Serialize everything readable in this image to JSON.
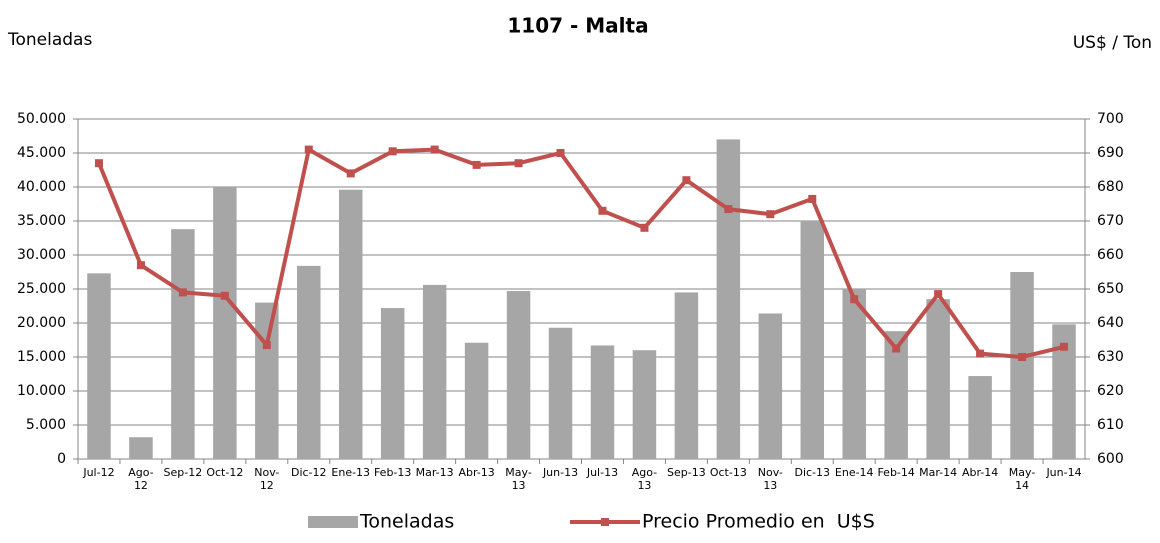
{
  "chart_data": {
    "type": "bar-line",
    "title": "1107 - Malta",
    "y_label": "Toneladas",
    "y2_label": "US$ / Ton",
    "categories": [
      "Jul-12",
      "Ago-12",
      "Sep-12",
      "Oct-12",
      "Nov-12",
      "Dic-12",
      "Ene-13",
      "Feb-13",
      "Mar-13",
      "Abr-13",
      "May-13",
      "Jun-13",
      "Jul-13",
      "Ago-13",
      "Sep-13",
      "Oct-13",
      "Nov-13",
      "Dic-13",
      "Ene-14",
      "Feb-14",
      "Mar-14",
      "Abr-14",
      "May-14",
      "Jun-14"
    ],
    "series": [
      {
        "name": "Toneladas",
        "type": "bar",
        "color": "#a6a6a6",
        "axis": "y",
        "values": [
          27300,
          3200,
          33800,
          40100,
          23000,
          28400,
          39600,
          22200,
          25600,
          17100,
          24700,
          19300,
          16700,
          16000,
          24500,
          47000,
          21400,
          34900,
          25000,
          18800,
          23500,
          12200,
          27500,
          19800
        ]
      },
      {
        "name": "Precio Promedio en  U$S",
        "type": "line",
        "color": "#c0504d",
        "axis": "y2",
        "values": [
          687,
          657,
          649,
          648,
          633.5,
          691,
          684,
          690.5,
          691,
          686.5,
          687,
          690,
          673,
          668,
          682,
          673.5,
          672,
          676.5,
          647,
          632.5,
          648.5,
          631,
          630,
          633
        ]
      }
    ],
    "ylim": [
      0,
      50000
    ],
    "yticks": [
      0,
      {
        "value": 5000,
        "label": "5.000"
      },
      {
        "value": 10000,
        "label": "10.000"
      },
      {
        "value": 15000,
        "label": "15.000"
      },
      {
        "value": 20000,
        "label": "20.000"
      },
      {
        "value": 25000,
        "label": "25.000"
      },
      {
        "value": 30000,
        "label": "30.000"
      },
      {
        "value": 35000,
        "label": "35.000"
      },
      {
        "value": 40000,
        "label": "40.000"
      },
      {
        "value": 45000,
        "label": "45.000"
      },
      {
        "value": 50000,
        "label": "50.000"
      }
    ],
    "y2lim": [
      600,
      700
    ],
    "y2ticks": [
      600,
      610,
      620,
      630,
      640,
      650,
      660,
      670,
      680,
      690,
      700
    ],
    "grid": true,
    "legend": "bottom"
  }
}
